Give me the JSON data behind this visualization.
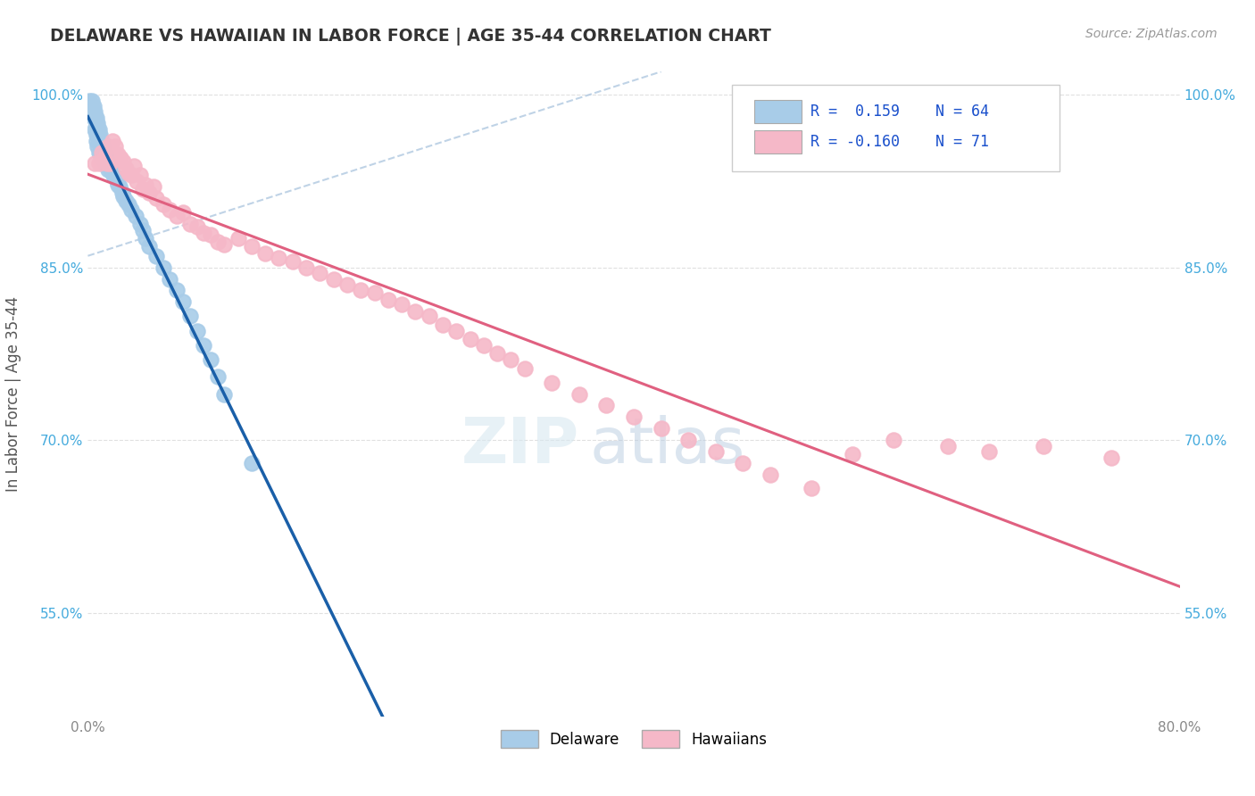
{
  "title": "DELAWARE VS HAWAIIAN IN LABOR FORCE | AGE 35-44 CORRELATION CHART",
  "source_text": "Source: ZipAtlas.com",
  "ylabel": "In Labor Force | Age 35-44",
  "xlim": [
    0.0,
    0.8
  ],
  "ylim": [
    0.46,
    1.02
  ],
  "xticks": [
    0.0,
    0.1,
    0.2,
    0.3,
    0.4,
    0.5,
    0.6,
    0.7,
    0.8
  ],
  "xticklabels": [
    "0.0%",
    "",
    "",
    "",
    "",
    "",
    "",
    "",
    "80.0%"
  ],
  "ytick_vals": [
    0.55,
    0.7,
    0.85,
    1.0
  ],
  "yticklabels": [
    "55.0%",
    "70.0%",
    "85.0%",
    "100.0%"
  ],
  "delaware_R": 0.159,
  "delaware_N": 64,
  "hawaiian_R": -0.16,
  "hawaiian_N": 71,
  "delaware_color": "#a8cce8",
  "hawaiian_color": "#f5b8c8",
  "delaware_edge_color": "#80aacc",
  "hawaiian_edge_color": "#e890a8",
  "delaware_line_color": "#1a5fa8",
  "hawaiian_line_color": "#e06080",
  "dashed_line_color": "#b0c8e0",
  "background_color": "#ffffff",
  "grid_color": "#e0e0e0",
  "title_color": "#333333",
  "ylabel_color": "#555555",
  "ytick_color": "#44aadd",
  "xtick_color": "#888888",
  "legend_text_color": "#1a50cc",
  "delaware_x": [
    0.001,
    0.003,
    0.004,
    0.004,
    0.005,
    0.005,
    0.005,
    0.006,
    0.006,
    0.006,
    0.006,
    0.007,
    0.007,
    0.007,
    0.007,
    0.008,
    0.008,
    0.008,
    0.009,
    0.009,
    0.009,
    0.01,
    0.01,
    0.01,
    0.01,
    0.011,
    0.011,
    0.012,
    0.012,
    0.013,
    0.013,
    0.014,
    0.015,
    0.015,
    0.016,
    0.017,
    0.018,
    0.019,
    0.02,
    0.021,
    0.022,
    0.023,
    0.025,
    0.026,
    0.028,
    0.03,
    0.032,
    0.035,
    0.038,
    0.04,
    0.042,
    0.045,
    0.05,
    0.055,
    0.06,
    0.065,
    0.07,
    0.075,
    0.08,
    0.085,
    0.09,
    0.095,
    0.1,
    0.12
  ],
  "delaware_y": [
    0.995,
    0.995,
    0.99,
    0.98,
    0.985,
    0.98,
    0.97,
    0.98,
    0.975,
    0.965,
    0.96,
    0.975,
    0.97,
    0.965,
    0.955,
    0.97,
    0.96,
    0.95,
    0.965,
    0.958,
    0.95,
    0.96,
    0.955,
    0.95,
    0.945,
    0.955,
    0.948,
    0.95,
    0.942,
    0.948,
    0.94,
    0.942,
    0.94,
    0.935,
    0.937,
    0.935,
    0.932,
    0.93,
    0.928,
    0.925,
    0.922,
    0.92,
    0.915,
    0.912,
    0.908,
    0.905,
    0.9,
    0.895,
    0.888,
    0.882,
    0.875,
    0.868,
    0.86,
    0.85,
    0.84,
    0.83,
    0.82,
    0.808,
    0.795,
    0.782,
    0.77,
    0.755,
    0.74,
    0.68
  ],
  "hawaiian_x": [
    0.005,
    0.008,
    0.01,
    0.012,
    0.014,
    0.015,
    0.016,
    0.018,
    0.02,
    0.022,
    0.024,
    0.026,
    0.028,
    0.03,
    0.032,
    0.034,
    0.036,
    0.038,
    0.04,
    0.042,
    0.045,
    0.048,
    0.05,
    0.055,
    0.06,
    0.065,
    0.07,
    0.075,
    0.08,
    0.085,
    0.09,
    0.095,
    0.1,
    0.11,
    0.12,
    0.13,
    0.14,
    0.15,
    0.16,
    0.17,
    0.18,
    0.19,
    0.2,
    0.21,
    0.22,
    0.23,
    0.24,
    0.25,
    0.26,
    0.27,
    0.28,
    0.29,
    0.3,
    0.31,
    0.32,
    0.34,
    0.36,
    0.38,
    0.4,
    0.42,
    0.44,
    0.46,
    0.48,
    0.5,
    0.53,
    0.56,
    0.59,
    0.63,
    0.66,
    0.7,
    0.75
  ],
  "hawaiian_y": [
    0.94,
    0.94,
    0.95,
    0.945,
    0.94,
    0.955,
    0.94,
    0.96,
    0.955,
    0.948,
    0.945,
    0.942,
    0.936,
    0.932,
    0.93,
    0.938,
    0.925,
    0.93,
    0.918,
    0.922,
    0.915,
    0.92,
    0.91,
    0.905,
    0.9,
    0.895,
    0.898,
    0.888,
    0.885,
    0.88,
    0.878,
    0.872,
    0.87,
    0.875,
    0.868,
    0.862,
    0.858,
    0.855,
    0.85,
    0.845,
    0.84,
    0.835,
    0.83,
    0.828,
    0.822,
    0.818,
    0.812,
    0.808,
    0.8,
    0.795,
    0.788,
    0.782,
    0.775,
    0.77,
    0.762,
    0.75,
    0.74,
    0.73,
    0.72,
    0.71,
    0.7,
    0.69,
    0.68,
    0.67,
    0.658,
    0.688,
    0.7,
    0.695,
    0.69,
    0.695,
    0.685
  ]
}
